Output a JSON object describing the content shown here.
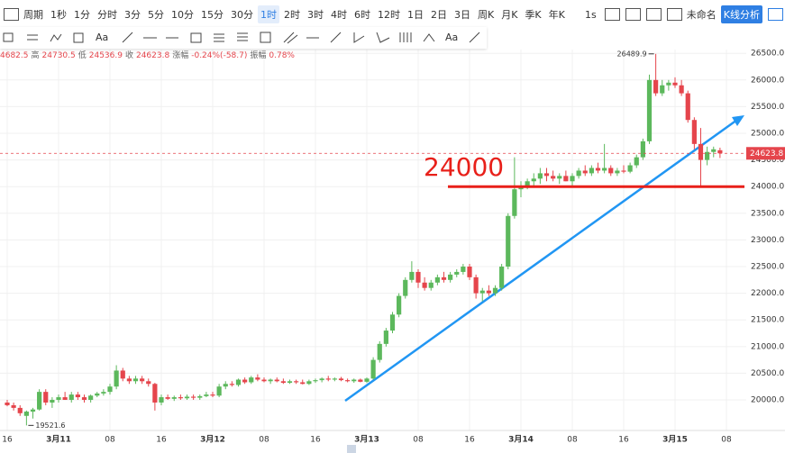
{
  "toolbar": {
    "period_label": "周期",
    "periods": [
      "1秒",
      "1分",
      "分时",
      "3分",
      "5分",
      "10分",
      "15分",
      "30分",
      "1时",
      "2时",
      "3时",
      "4时",
      "6时",
      "12时",
      "1日",
      "2日",
      "3日",
      "周K",
      "月K",
      "季K",
      "年K"
    ],
    "selected_period": 8,
    "interval": "1s",
    "name": "未命名",
    "analysis": "K线分析"
  },
  "draw_toolbar": {
    "text_tools": [
      "Aa",
      "Aa"
    ]
  },
  "info": [
    "4682.5",
    "高",
    "24730.5",
    "低",
    "24536.9",
    "收",
    "24623.8",
    "涨幅",
    "-0.24%(-58.7)",
    "振幅",
    "0.78%"
  ],
  "chart_data": {
    "type": "candlestick",
    "up_color": "#5cb85c",
    "down_color": "#e5454c",
    "grid": true,
    "ylim": [
      19426,
      26571
    ],
    "yticks": [
      {
        "value": 20000,
        "label": "20000.0"
      },
      {
        "value": 20500,
        "label": "20500.0"
      },
      {
        "value": 21000,
        "label": "21000.0"
      },
      {
        "value": 21500,
        "label": "21500.0"
      },
      {
        "value": 22000,
        "label": "22000.0"
      },
      {
        "value": 22500,
        "label": "22500.0"
      },
      {
        "value": 23000,
        "label": "23000.0"
      },
      {
        "value": 23500,
        "label": "23500.0"
      },
      {
        "value": 24000,
        "label": "24000.0"
      },
      {
        "value": 24500,
        "label": "24500.0"
      },
      {
        "value": 25000,
        "label": "25000.0"
      },
      {
        "value": 25500,
        "label": "25500.0"
      },
      {
        "value": 26000,
        "label": "26000.0"
      },
      {
        "value": 26500,
        "label": "26500.0"
      }
    ],
    "xticks": [
      {
        "value": 0,
        "label": "16"
      },
      {
        "value": 8,
        "label": "3月11"
      },
      {
        "value": 16,
        "label": "08"
      },
      {
        "value": 24,
        "label": "16"
      },
      {
        "value": 32,
        "label": "3月12"
      },
      {
        "value": 40,
        "label": "08"
      },
      {
        "value": 48,
        "label": "16"
      },
      {
        "value": 56,
        "label": "3月13"
      },
      {
        "value": 64,
        "label": "08"
      },
      {
        "value": 72,
        "label": "16"
      },
      {
        "value": 80,
        "label": "3月14"
      },
      {
        "value": 88,
        "label": "08"
      },
      {
        "value": 96,
        "label": "16"
      },
      {
        "value": 104,
        "label": "3月15"
      },
      {
        "value": 112,
        "label": "08"
      }
    ],
    "hline": 24000,
    "hline_color": "#e8201a",
    "max_index": 101,
    "min_index": 3,
    "ohlc": [
      [
        19950,
        20000,
        19880,
        19900
      ],
      [
        19900,
        19950,
        19800,
        19850
      ],
      [
        19850,
        19900,
        19700,
        19750
      ],
      [
        19700,
        19800,
        19521.6,
        19780
      ],
      [
        19780,
        19850,
        19650,
        19820
      ],
      [
        19820,
        20200,
        19800,
        20150
      ],
      [
        20150,
        20200,
        19900,
        19950
      ],
      [
        19950,
        20050,
        19850,
        20000
      ],
      [
        20000,
        20100,
        19950,
        20050
      ],
      [
        20050,
        20150,
        20000,
        20000
      ],
      [
        20000,
        20150,
        19950,
        20100
      ],
      [
        20100,
        20150,
        20000,
        20050
      ],
      [
        20050,
        20100,
        19950,
        20000
      ],
      [
        20000,
        20100,
        19950,
        20080
      ],
      [
        20080,
        20150,
        20050,
        20120
      ],
      [
        20120,
        20200,
        20080,
        20150
      ],
      [
        20150,
        20300,
        20100,
        20250
      ],
      [
        20250,
        20650,
        20200,
        20550
      ],
      [
        20550,
        20600,
        20350,
        20400
      ],
      [
        20400,
        20450,
        20300,
        20350
      ],
      [
        20350,
        20450,
        20300,
        20400
      ],
      [
        20400,
        20450,
        20300,
        20350
      ],
      [
        20350,
        20400,
        20250,
        20300
      ],
      [
        20300,
        20320,
        19800,
        19950
      ],
      [
        19950,
        20100,
        19900,
        20050
      ],
      [
        20050,
        20100,
        20000,
        20020
      ],
      [
        20020,
        20080,
        19980,
        20050
      ],
      [
        20050,
        20100,
        20000,
        20030
      ],
      [
        20030,
        20100,
        20000,
        20060
      ],
      [
        20060,
        20100,
        20000,
        20040
      ],
      [
        20040,
        20100,
        20000,
        20070
      ],
      [
        20070,
        20150,
        20050,
        20100
      ],
      [
        20100,
        20150,
        20050,
        20080
      ],
      [
        20080,
        20300,
        20050,
        20250
      ],
      [
        20250,
        20350,
        20200,
        20300
      ],
      [
        20300,
        20350,
        20250,
        20280
      ],
      [
        20280,
        20400,
        20250,
        20380
      ],
      [
        20380,
        20420,
        20300,
        20330
      ],
      [
        20330,
        20450,
        20300,
        20420
      ],
      [
        20420,
        20480,
        20350,
        20380
      ],
      [
        20380,
        20420,
        20330,
        20350
      ],
      [
        20350,
        20400,
        20300,
        20380
      ],
      [
        20380,
        20420,
        20330,
        20350
      ],
      [
        20350,
        20400,
        20300,
        20320
      ],
      [
        20320,
        20380,
        20300,
        20350
      ],
      [
        20350,
        20380,
        20300,
        20330
      ],
      [
        20330,
        20380,
        20290,
        20300
      ],
      [
        20300,
        20380,
        20280,
        20350
      ],
      [
        20350,
        20400,
        20320,
        20370
      ],
      [
        20370,
        20420,
        20330,
        20400
      ],
      [
        20400,
        20450,
        20350,
        20380
      ],
      [
        20380,
        20420,
        20350,
        20400
      ],
      [
        20400,
        20430,
        20350,
        20370
      ],
      [
        20370,
        20400,
        20330,
        20350
      ],
      [
        20350,
        20400,
        20320,
        20380
      ],
      [
        20380,
        20400,
        20330,
        20340
      ],
      [
        20340,
        20420,
        20320,
        20400
      ],
      [
        20400,
        20800,
        20380,
        20750
      ],
      [
        20750,
        21100,
        20700,
        21050
      ],
      [
        21050,
        21350,
        21000,
        21300
      ],
      [
        21300,
        21650,
        21250,
        21600
      ],
      [
        21600,
        22000,
        21550,
        21950
      ],
      [
        21950,
        22300,
        21900,
        22250
      ],
      [
        22250,
        22600,
        22200,
        22400
      ],
      [
        22400,
        22450,
        22100,
        22200
      ],
      [
        22200,
        22300,
        22050,
        22100
      ],
      [
        22100,
        22250,
        22050,
        22200
      ],
      [
        22200,
        22350,
        22150,
        22300
      ],
      [
        22300,
        22400,
        22200,
        22250
      ],
      [
        22250,
        22400,
        22200,
        22350
      ],
      [
        22350,
        22450,
        22300,
        22400
      ],
      [
        22400,
        22550,
        22350,
        22500
      ],
      [
        22500,
        22550,
        22250,
        22300
      ],
      [
        22300,
        22350,
        21900,
        22000
      ],
      [
        22000,
        22100,
        21850,
        22050
      ],
      [
        22050,
        22150,
        21950,
        22000
      ],
      [
        22000,
        22150,
        21950,
        22100
      ],
      [
        22100,
        22550,
        22050,
        22500
      ],
      [
        22500,
        23500,
        22450,
        23450
      ],
      [
        23450,
        24550,
        23400,
        23950
      ],
      [
        23950,
        24100,
        23800,
        24000
      ],
      [
        24000,
        24150,
        23950,
        24100
      ],
      [
        24100,
        24250,
        24000,
        24150
      ],
      [
        24150,
        24350,
        24050,
        24250
      ],
      [
        24250,
        24350,
        24100,
        24200
      ],
      [
        24200,
        24300,
        24100,
        24150
      ],
      [
        24150,
        24250,
        24050,
        24200
      ],
      [
        24200,
        24300,
        24100,
        24100
      ],
      [
        24100,
        24250,
        24000,
        24200
      ],
      [
        24200,
        24350,
        24150,
        24300
      ],
      [
        24300,
        24400,
        24200,
        24250
      ],
      [
        24250,
        24400,
        24200,
        24350
      ],
      [
        24350,
        24450,
        24250,
        24300
      ],
      [
        24300,
        24800,
        24250,
        24350
      ],
      [
        24350,
        24400,
        24200,
        24250
      ],
      [
        24250,
        24350,
        24200,
        24300
      ],
      [
        24300,
        24400,
        24250,
        24280
      ],
      [
        24280,
        24450,
        24250,
        24400
      ],
      [
        24400,
        24600,
        24350,
        24550
      ],
      [
        24550,
        24900,
        24500,
        24850
      ],
      [
        24850,
        26100,
        24800,
        26000
      ],
      [
        26000,
        26489.9,
        25700,
        25750
      ],
      [
        25750,
        26000,
        25700,
        25900
      ],
      [
        25900,
        26000,
        25800,
        25950
      ],
      [
        25950,
        26050,
        25850,
        25900
      ],
      [
        25900,
        26000,
        25700,
        25750
      ],
      [
        25750,
        25800,
        25200,
        25250
      ],
      [
        25250,
        25300,
        24700,
        24800
      ],
      [
        24800,
        25100,
        24000,
        24500
      ],
      [
        24500,
        24750,
        24400,
        24650
      ],
      [
        24650,
        24750,
        24550,
        24700
      ],
      [
        24682.5,
        24730.5,
        24536.9,
        24623.8
      ]
    ]
  }
}
